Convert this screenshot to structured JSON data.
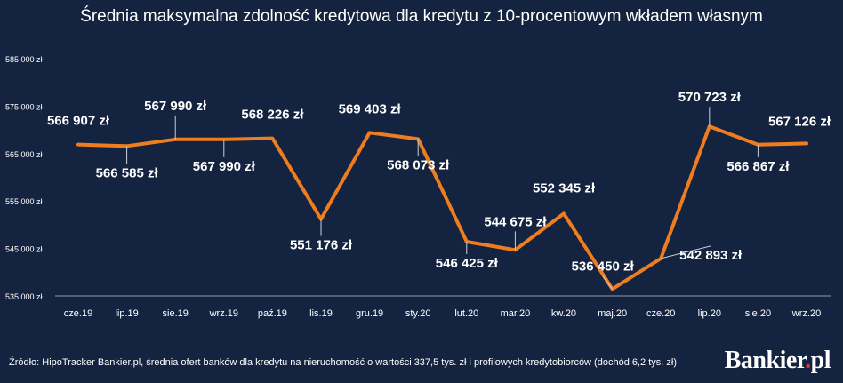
{
  "chart_data": {
    "type": "line",
    "title": "Średnia maksymalna zdolność kredytowa dla kredytu z 10-procentowym wkładem własnym",
    "categories": [
      "cze.19",
      "lip.19",
      "sie.19",
      "wrz.19",
      "paź.19",
      "lis.19",
      "gru.19",
      "sty.20",
      "lut.20",
      "mar.20",
      "kw.20",
      "maj.20",
      "cze.20",
      "lip.20",
      "sie.20",
      "wrz.20"
    ],
    "values": [
      566907,
      566585,
      567990,
      567990,
      568226,
      551176,
      569403,
      568073,
      546425,
      544675,
      552345,
      536450,
      542893,
      570723,
      566867,
      567126
    ],
    "data_labels": [
      "566 907 zł",
      "566 585 zł",
      "567 990 zł",
      "567 990 zł",
      "568 226 zł",
      "551 176 zł",
      "569 403 zł",
      "568 073 zł",
      "546 425 zł",
      "544 675 zł",
      "552 345 zł",
      "536 450 zł",
      "542 893 zł",
      "570 723 zł",
      "566 867 zł",
      "567 126 zł"
    ],
    "yticks": [
      "535 000 zł",
      "545 000 zł",
      "555 000 zł",
      "565 000 zł",
      "575 000 zł",
      "585 000 zł"
    ],
    "ytick_values": [
      535000,
      545000,
      555000,
      565000,
      575000,
      585000
    ],
    "ylim": [
      535000,
      585000
    ],
    "xlabel": "",
    "ylabel": "",
    "grid": false,
    "line_color": "#ee7d1f"
  },
  "footer": {
    "source": "Źródło: HipoTracker Bankier.pl, średnia ofert banków dla kredytu na nieruchomość o wartości 337,5 tys. zł i profilowych kredytobiorców (dochód 6,2 tys. zł)",
    "brand_text": "Bankier",
    "brand_dot": ".",
    "brand_suffix": "pl"
  }
}
